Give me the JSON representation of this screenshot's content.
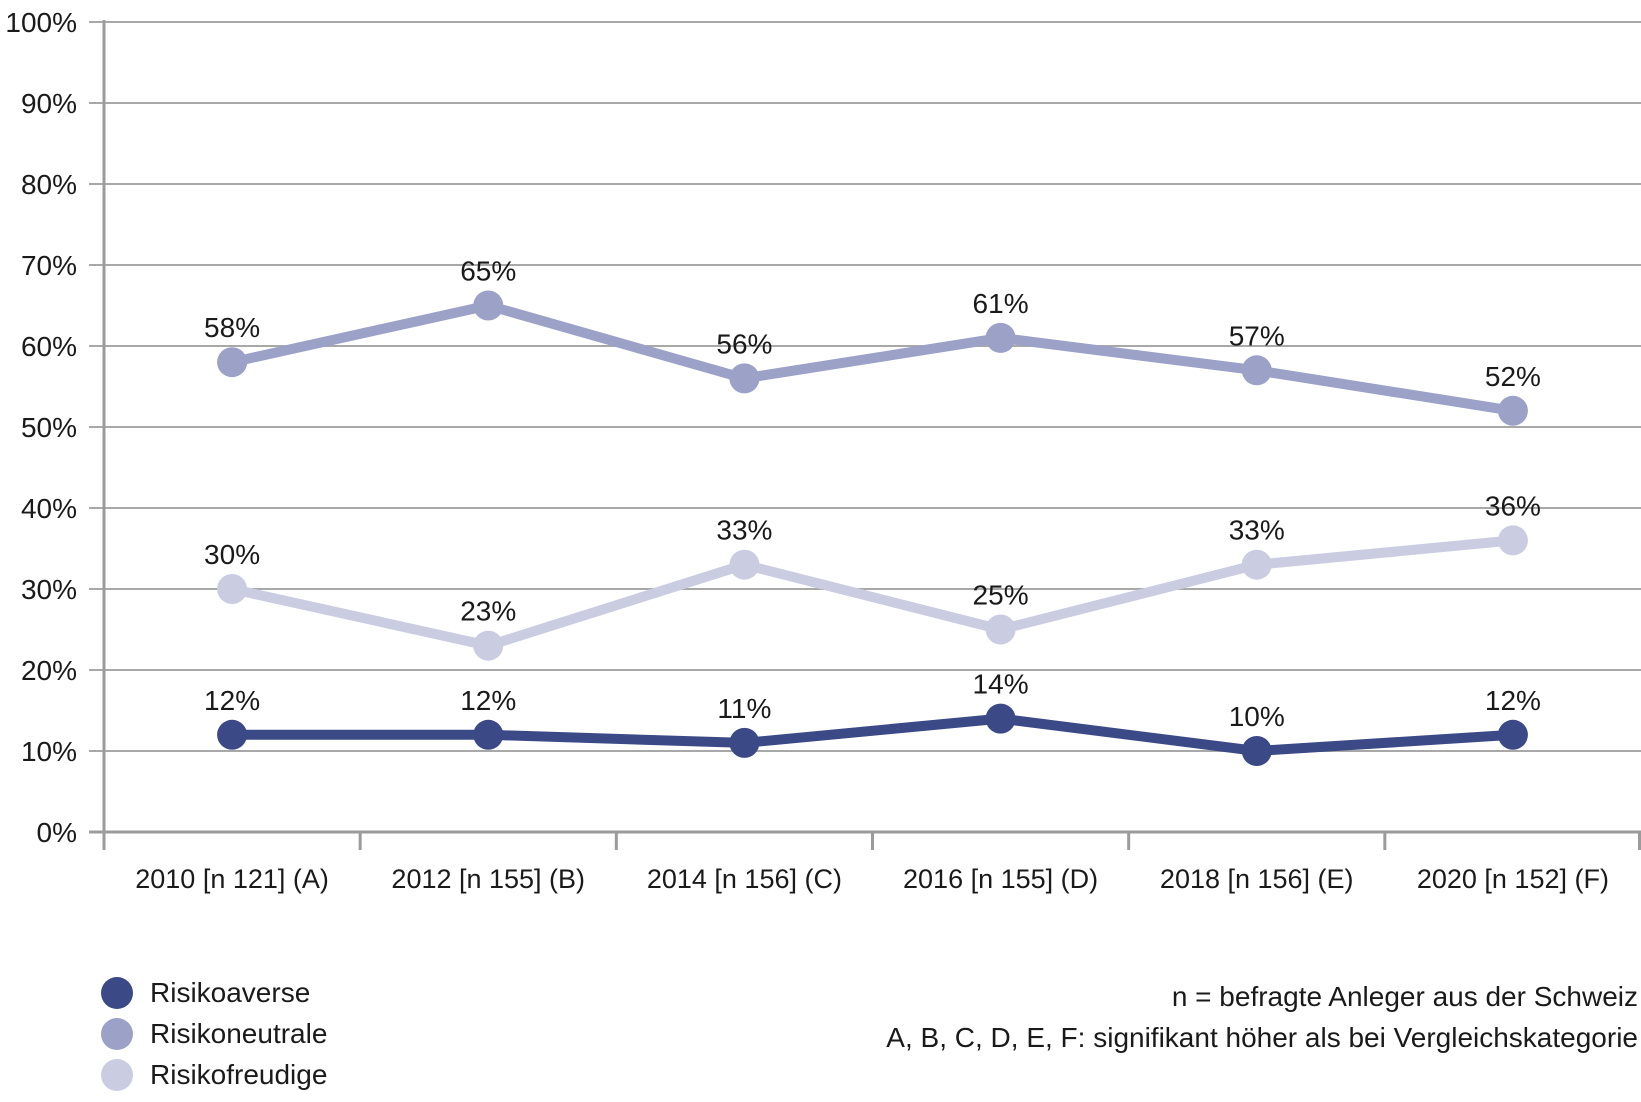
{
  "chart_data": {
    "type": "line",
    "title": "",
    "categories": [
      "2010 [n 121] (A)",
      "2012 [n 155] (B)",
      "2014 [n 156] (C)",
      "2016 [n 155] (D)",
      "2018 [n 156] (E)",
      "2020 [n 152] (F)"
    ],
    "series": [
      {
        "name": "Risikoaverse",
        "color": "#3b4a86",
        "values": [
          12,
          12,
          11,
          14,
          10,
          12
        ]
      },
      {
        "name": "Risikoneutrale",
        "color": "#9ba1c7",
        "values": [
          58,
          65,
          56,
          61,
          57,
          52
        ]
      },
      {
        "name": "Risikofreudige",
        "color": "#cacce2",
        "values": [
          30,
          23,
          33,
          25,
          33,
          36
        ]
      }
    ],
    "value_suffix": "%",
    "data_labels": true,
    "y_axis": {
      "min": 0,
      "max": 100,
      "step": 10,
      "tick_suffix": "%",
      "tick_labels": [
        "0%",
        "10%",
        "20%",
        "30%",
        "40%",
        "50%",
        "60%",
        "70%",
        "80%",
        "90%",
        "100%"
      ]
    },
    "grid": true,
    "legend_position": "bottom-left"
  },
  "notes": {
    "line1": "n = befragte Anleger aus der Schweiz",
    "line2": "A, B, C, D, E, F: signifikant höher als bei Vergleichskategorie"
  },
  "colors": {
    "grid": "#a8a8a8",
    "axis": "#9b9b9b",
    "text": "#1a1a1a",
    "background": "#ffffff"
  }
}
